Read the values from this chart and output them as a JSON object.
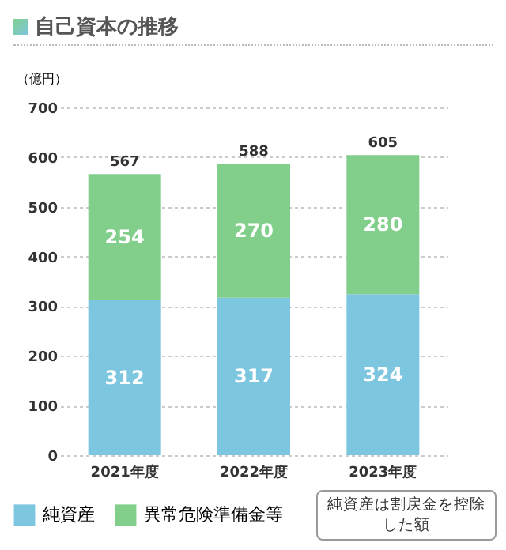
{
  "chart_data": {
    "type": "bar",
    "title": "自己資本の推移",
    "ylabel": "（億円）",
    "categories": [
      "2021年度",
      "2022年度",
      "2023年度"
    ],
    "stacked": true,
    "series": [
      {
        "name": "純資産",
        "color": "#7cc6df",
        "values": [
          312,
          317,
          324
        ]
      },
      {
        "name": "異常危険準備金等",
        "color": "#82cf8c",
        "values": [
          254,
          270,
          280
        ]
      }
    ],
    "totals": [
      "567",
      "588",
      "605"
    ],
    "data_labels": true,
    "ylim": [
      0,
      700
    ],
    "yticks": [
      0,
      100,
      200,
      300,
      400,
      500,
      600,
      700
    ],
    "grid": "y",
    "legend": "bottom left",
    "annotations": [
      "純資産は割戻金を控除した額"
    ]
  }
}
